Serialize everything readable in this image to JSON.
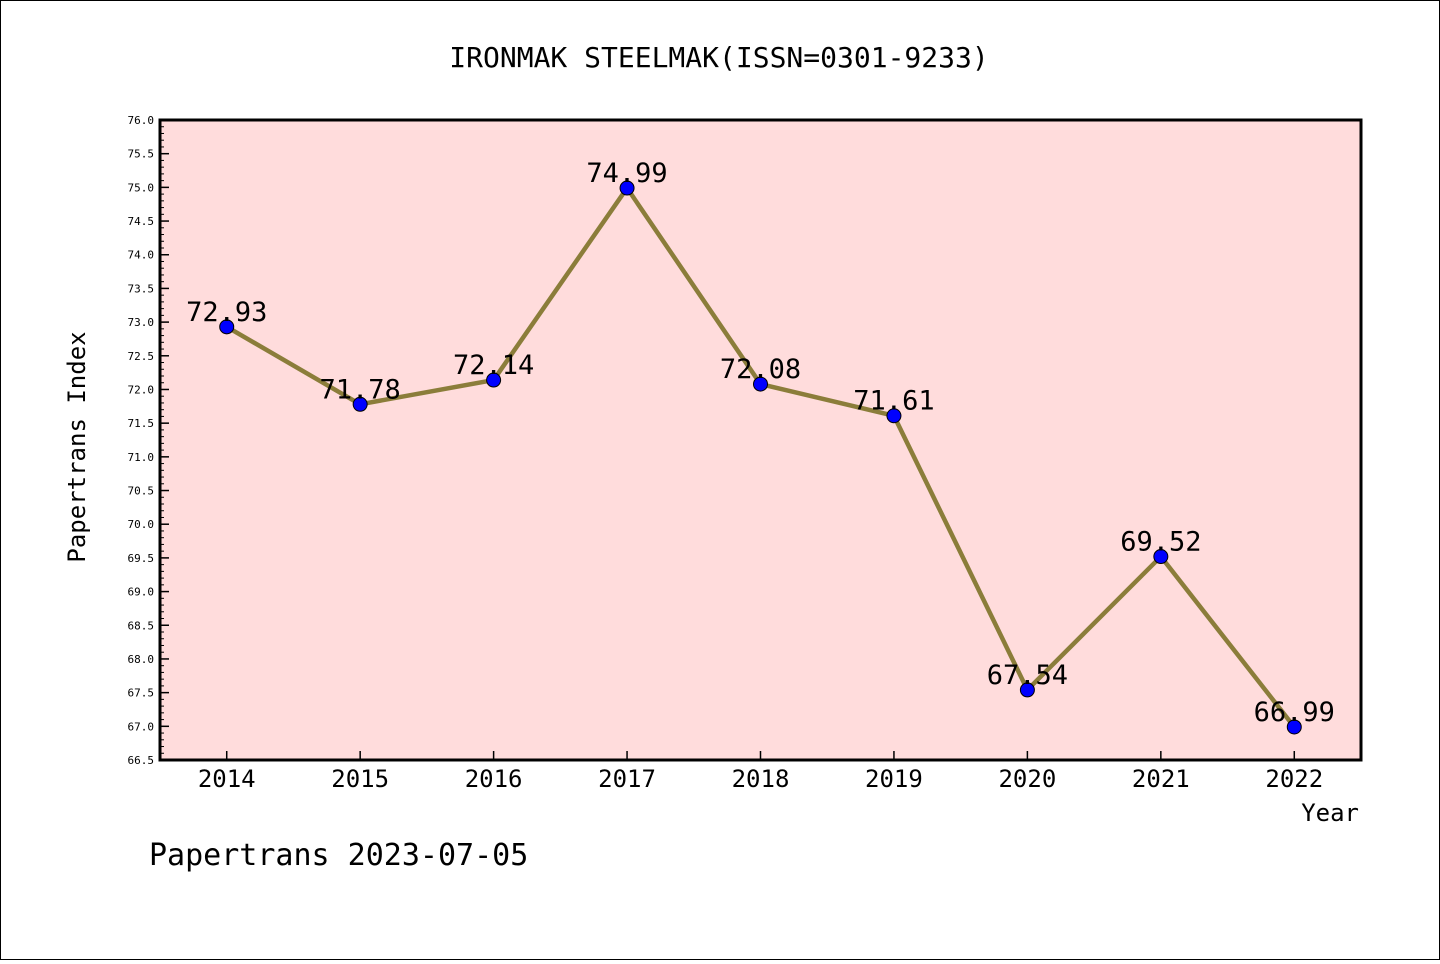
{
  "chart_data": {
    "type": "line",
    "title": "IRONMAK STEELMAK(ISSN=0301-9233)",
    "xlabel": "Year",
    "ylabel": "Papertrans Index",
    "footer": "Papertrans 2023-07-05",
    "categories": [
      "2014",
      "2015",
      "2016",
      "2017",
      "2018",
      "2019",
      "2020",
      "2021",
      "2022"
    ],
    "values": [
      72.93,
      71.78,
      72.14,
      74.99,
      72.08,
      71.61,
      67.54,
      69.52,
      66.99
    ],
    "point_labels": [
      "72.93",
      "71.78",
      "72.14",
      "74.99",
      "72.08",
      "71.61",
      "67.54",
      "69.52",
      "66.99"
    ],
    "ylim": [
      66.5,
      76.0
    ],
    "y_major_step": 0.5,
    "y_minor_step": 0.1,
    "yticks": [
      "66.5",
      "67.0",
      "67.5",
      "68.0",
      "68.5",
      "69.0",
      "69.5",
      "70.0",
      "70.5",
      "71.0",
      "71.5",
      "72.0",
      "72.5",
      "73.0",
      "73.5",
      "74.0",
      "74.5",
      "75.0",
      "75.5",
      "76.0"
    ],
    "grid": false,
    "colors": {
      "plot_background": "#ffdcdc",
      "line": "#8b7d3a",
      "marker": "#0000ff"
    }
  }
}
